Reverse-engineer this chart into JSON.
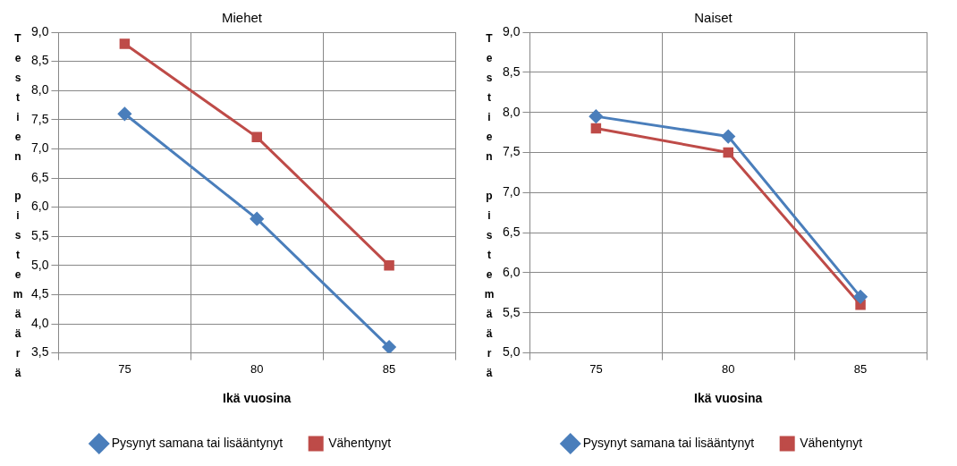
{
  "chart_data": [
    {
      "type": "line",
      "title": "Miehet",
      "xlabel": "Ikä vuosina",
      "ylabel": "Testien pistemäärä",
      "categories": [
        "75",
        "80",
        "85"
      ],
      "series": [
        {
          "name": "Pysynyt samana tai lisääntynyt",
          "color": "#4a7ebb",
          "marker": "diamond",
          "values": [
            7.6,
            5.8,
            3.6
          ]
        },
        {
          "name": "Vähentynyt",
          "color": "#be4b48",
          "marker": "square",
          "values": [
            8.8,
            7.2,
            5.0
          ]
        }
      ],
      "ylim": [
        3.5,
        9.0
      ],
      "yticks": [
        {
          "value": 3.5,
          "label": "3,5"
        },
        {
          "value": 4.0,
          "label": "4,0"
        },
        {
          "value": 4.5,
          "label": "4,5"
        },
        {
          "value": 5.0,
          "label": "5,0"
        },
        {
          "value": 5.5,
          "label": "5,5"
        },
        {
          "value": 6.0,
          "label": "6,0"
        },
        {
          "value": 6.5,
          "label": "6,5"
        },
        {
          "value": 7.0,
          "label": "7,0"
        },
        {
          "value": 7.5,
          "label": "7,5"
        },
        {
          "value": 8.0,
          "label": "8,0"
        },
        {
          "value": 8.5,
          "label": "8,5"
        },
        {
          "value": 9.0,
          "label": "9,0"
        }
      ],
      "grid": true,
      "legend": "bottom"
    },
    {
      "type": "line",
      "title": "Naiset",
      "xlabel": "Ikä vuosina",
      "ylabel": "Testien pistemäärä",
      "categories": [
        "75",
        "80",
        "85"
      ],
      "series": [
        {
          "name": "Pysynyt samana tai lisääntynyt",
          "color": "#4a7ebb",
          "marker": "diamond",
          "values": [
            7.95,
            7.7,
            5.7
          ]
        },
        {
          "name": "Vähentynyt",
          "color": "#be4b48",
          "marker": "square",
          "values": [
            7.8,
            7.5,
            5.6
          ]
        }
      ],
      "ylim": [
        5.0,
        9.0
      ],
      "yticks": [
        {
          "value": 5.0,
          "label": "5,0"
        },
        {
          "value": 5.5,
          "label": "5,5"
        },
        {
          "value": 6.0,
          "label": "6,0"
        },
        {
          "value": 6.5,
          "label": "6,5"
        },
        {
          "value": 7.0,
          "label": "7,0"
        },
        {
          "value": 7.5,
          "label": "7,5"
        },
        {
          "value": 8.0,
          "label": "8,0"
        },
        {
          "value": 8.5,
          "label": "8,5"
        },
        {
          "value": 9.0,
          "label": "9,0"
        }
      ],
      "grid": true,
      "legend": "bottom"
    }
  ]
}
